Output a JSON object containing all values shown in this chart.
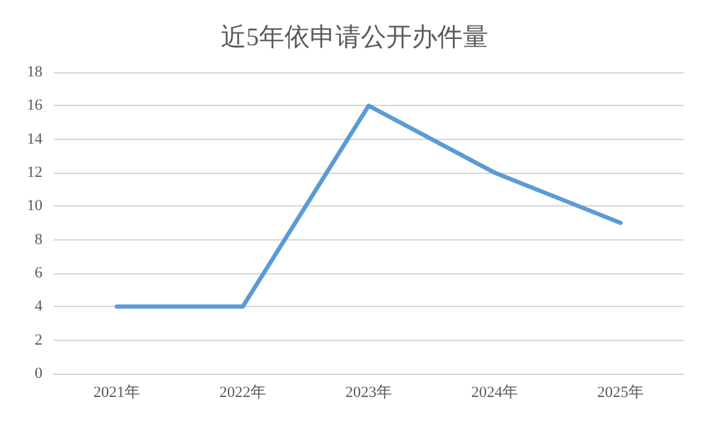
{
  "chart_data": {
    "type": "line",
    "title": "近5年依申请公开办件量",
    "categories": [
      "2021年",
      "2022年",
      "2023年",
      "2024年",
      "2025年"
    ],
    "series": [
      {
        "color": "#5b9bd5",
        "values": [
          4,
          4,
          16,
          12,
          9
        ]
      }
    ],
    "ylim": [
      0,
      18
    ],
    "yticks": [
      0,
      2,
      4,
      6,
      8,
      10,
      12,
      14,
      16,
      18
    ],
    "grid": "y",
    "marker": "none",
    "line_style": "solid"
  }
}
